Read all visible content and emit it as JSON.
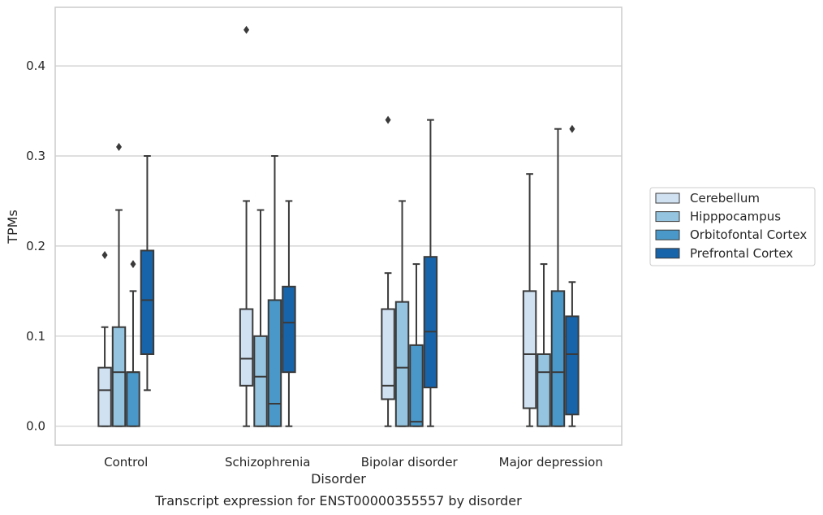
{
  "caption": "Transcript expression for ENST00000355557 by disorder",
  "chart_data": {
    "type": "box",
    "xlabel": "Disorder",
    "ylabel": "TPMs",
    "ylim": [
      -0.021,
      0.465
    ],
    "yticks": [
      0.0,
      0.1,
      0.2,
      0.3,
      0.4
    ],
    "ytick_labels": [
      "0.0",
      "0.1",
      "0.2",
      "0.3",
      "0.4"
    ],
    "grid": "horizontal",
    "legend_position": "right",
    "categories": [
      "Control",
      "Schizophrenia",
      "Bipolar disorder",
      "Major depression"
    ],
    "series": [
      {
        "name": "Cerebellum",
        "color": "#d0e1f2",
        "boxes": [
          {
            "whislo": 0.0,
            "q1": 0.0,
            "med": 0.04,
            "q3": 0.065,
            "whishi": 0.11,
            "fliers": [
              0.19
            ]
          },
          {
            "whislo": 0.0,
            "q1": 0.045,
            "med": 0.075,
            "q3": 0.13,
            "whishi": 0.25,
            "fliers": [
              0.44
            ]
          },
          {
            "whislo": 0.0,
            "q1": 0.03,
            "med": 0.045,
            "q3": 0.13,
            "whishi": 0.17,
            "fliers": [
              0.34
            ]
          },
          {
            "whislo": 0.0,
            "q1": 0.02,
            "med": 0.08,
            "q3": 0.15,
            "whishi": 0.28,
            "fliers": []
          }
        ]
      },
      {
        "name": "Hipppocampus",
        "color": "#94c4df",
        "boxes": [
          {
            "whislo": 0.0,
            "q1": 0.0,
            "med": 0.06,
            "q3": 0.11,
            "whishi": 0.24,
            "fliers": [
              0.31
            ]
          },
          {
            "whislo": 0.0,
            "q1": 0.0,
            "med": 0.055,
            "q3": 0.1,
            "whishi": 0.24,
            "fliers": []
          },
          {
            "whislo": 0.0,
            "q1": 0.0,
            "med": 0.065,
            "q3": 0.138,
            "whishi": 0.25,
            "fliers": []
          },
          {
            "whislo": 0.0,
            "q1": 0.0,
            "med": 0.06,
            "q3": 0.08,
            "whishi": 0.18,
            "fliers": []
          }
        ]
      },
      {
        "name": "Orbitofontal Cortex",
        "color": "#4a98c9",
        "boxes": [
          {
            "whislo": 0.0,
            "q1": 0.0,
            "med": 0.06,
            "q3": 0.06,
            "whishi": 0.15,
            "fliers": [
              0.18
            ]
          },
          {
            "whislo": 0.0,
            "q1": 0.0,
            "med": 0.025,
            "q3": 0.14,
            "whishi": 0.3,
            "fliers": []
          },
          {
            "whislo": 0.0,
            "q1": 0.0,
            "med": 0.005,
            "q3": 0.09,
            "whishi": 0.18,
            "fliers": []
          },
          {
            "whislo": 0.0,
            "q1": 0.0,
            "med": 0.06,
            "q3": 0.15,
            "whishi": 0.33,
            "fliers": []
          }
        ]
      },
      {
        "name": "Prefrontal Cortex",
        "color": "#1764ab",
        "boxes": [
          {
            "whislo": 0.04,
            "q1": 0.08,
            "med": 0.14,
            "q3": 0.195,
            "whishi": 0.3,
            "fliers": []
          },
          {
            "whislo": 0.0,
            "q1": 0.06,
            "med": 0.115,
            "q3": 0.155,
            "whishi": 0.25,
            "fliers": []
          },
          {
            "whislo": 0.0,
            "q1": 0.043,
            "med": 0.105,
            "q3": 0.188,
            "whishi": 0.34,
            "fliers": []
          },
          {
            "whislo": 0.0,
            "q1": 0.013,
            "med": 0.08,
            "q3": 0.122,
            "whishi": 0.16,
            "fliers": [
              0.33
            ]
          }
        ]
      }
    ]
  }
}
